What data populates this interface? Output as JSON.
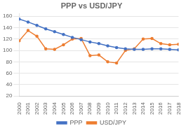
{
  "chart_data": {
    "type": "line",
    "title": "PPP vs USD/JPY",
    "x": [
      2000,
      2001,
      2002,
      2003,
      2004,
      2005,
      2006,
      2007,
      2008,
      2009,
      2010,
      2011,
      2012,
      2013,
      2014,
      2015,
      2016,
      2017,
      2018
    ],
    "xlim": [
      2000,
      2018
    ],
    "xticks": [
      2000,
      2001,
      2002,
      2003,
      2004,
      2005,
      2006,
      2007,
      2008,
      2009,
      2010,
      2011,
      2012,
      2013,
      2014,
      2015,
      2016,
      2017,
      2018
    ],
    "series": [
      {
        "name": "PPP",
        "color": "#4472c4",
        "marker": "circle",
        "values": [
          155,
          150,
          144,
          138,
          133,
          128,
          123,
          119,
          115,
          112,
          108,
          105,
          103,
          102,
          102,
          103,
          103,
          102,
          101
        ]
      },
      {
        "name": "USD/JPY",
        "color": "#ed7d31",
        "marker": "circle",
        "values": [
          117,
          135,
          125,
          103,
          102,
          110,
          120,
          121,
          91,
          92,
          80,
          78,
          100,
          103,
          120,
          121,
          112,
          110,
          111
        ]
      }
    ],
    "ylim": [
      20,
      165
    ],
    "yticks": [
      20,
      40,
      60,
      80,
      100,
      120,
      140,
      160
    ],
    "grid": true,
    "legend": "bottom"
  }
}
